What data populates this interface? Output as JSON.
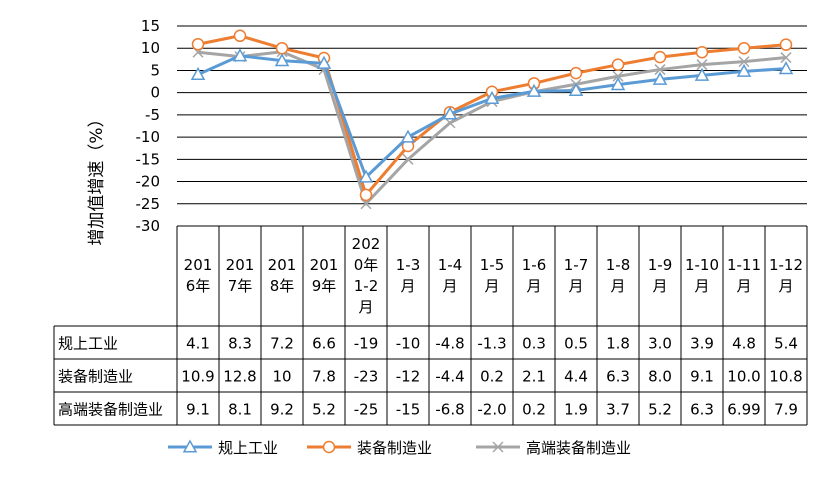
{
  "chart_data": {
    "type": "line",
    "title": "",
    "xlabel": "",
    "ylabel": "增加值增速（%）",
    "ylim": [
      -30,
      15
    ],
    "yticks": [
      15,
      10,
      5,
      0,
      -5,
      -10,
      -15,
      -20,
      -25,
      -30
    ],
    "grid": true,
    "legend_position": "bottom",
    "categories": [
      [
        "201",
        "6年"
      ],
      [
        "201",
        "7年"
      ],
      [
        "201",
        "8年"
      ],
      [
        "201",
        "9年"
      ],
      [
        "202",
        "0年",
        "1-2",
        "月"
      ],
      [
        "1-3",
        "月"
      ],
      [
        "1-4",
        "月"
      ],
      [
        "1-5",
        "月"
      ],
      [
        "1-6",
        "月"
      ],
      [
        "1-7",
        "月"
      ],
      [
        "1-8",
        "月"
      ],
      [
        "1-9",
        "月"
      ],
      [
        "1-10",
        "月"
      ],
      [
        "1-11",
        "月"
      ],
      [
        "1-12",
        "月"
      ]
    ],
    "series": [
      {
        "name": "规上工业",
        "color": "#5B9BD5",
        "marker": "triangle",
        "values": [
          4.1,
          8.3,
          7.2,
          6.6,
          -19,
          -10,
          -4.8,
          -1.3,
          0.3,
          0.5,
          1.8,
          3.0,
          3.9,
          4.8,
          5.4
        ],
        "labels": [
          "4.1",
          "8.3",
          "7.2",
          "6.6",
          "-19",
          "-10",
          "-4.8",
          "-1.3",
          "0.3",
          "0.5",
          "1.8",
          "3.0",
          "3.9",
          "4.8",
          "5.4"
        ]
      },
      {
        "name": "装备制造业",
        "color": "#ED7D31",
        "marker": "circle",
        "values": [
          10.9,
          12.8,
          10,
          7.8,
          -23,
          -12,
          -4.4,
          0.2,
          2.1,
          4.4,
          6.3,
          8.0,
          9.1,
          10.0,
          10.8
        ],
        "labels": [
          "10.9",
          "12.8",
          "10",
          "7.8",
          "-23",
          "-12",
          "-4.4",
          "0.2",
          "2.1",
          "4.4",
          "6.3",
          "8.0",
          "9.1",
          "10.0",
          "10.8"
        ]
      },
      {
        "name": "高端装备制造业",
        "color": "#A5A5A5",
        "marker": "x",
        "values": [
          9.1,
          8.1,
          9.2,
          5.2,
          -25,
          -15,
          -6.8,
          -2.0,
          0.2,
          1.9,
          3.7,
          5.2,
          6.3,
          6.99,
          7.9
        ],
        "labels": [
          "9.1",
          "8.1",
          "9.2",
          "5.2",
          "-25",
          "-15",
          "-6.8",
          "-2.0",
          "0.2",
          "1.9",
          "3.7",
          "5.2",
          "6.3",
          "6.99",
          "7.9"
        ]
      }
    ]
  }
}
